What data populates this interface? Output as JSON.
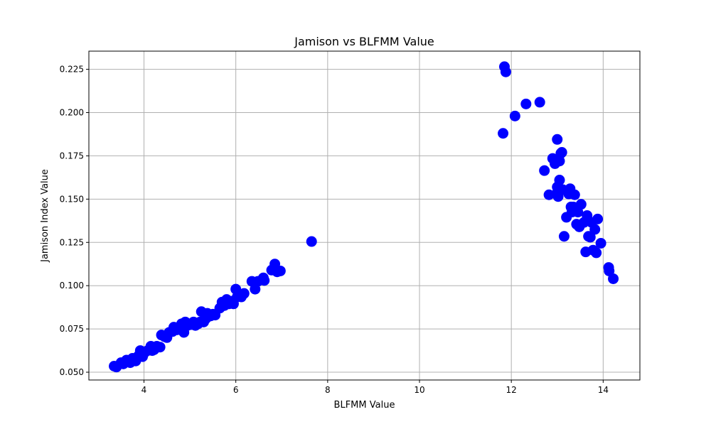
{
  "chart_data": {
    "type": "scatter",
    "title": "Jamison vs BLFMM Value",
    "xlabel": "BLFMM Value",
    "ylabel": "Jamison Index Value",
    "xlim": [
      2.8,
      14.8
    ],
    "ylim": [
      0.0455,
      0.2355
    ],
    "xticks": [
      4,
      6,
      8,
      10,
      12,
      14
    ],
    "xtick_labels": [
      "4",
      "6",
      "8",
      "10",
      "12",
      "14"
    ],
    "yticks": [
      0.05,
      0.075,
      0.1,
      0.125,
      0.15,
      0.175,
      0.2,
      0.225
    ],
    "ytick_labels": [
      "0.050",
      "0.075",
      "0.100",
      "0.125",
      "0.150",
      "0.175",
      "0.200",
      "0.225"
    ],
    "grid": true,
    "marker_color": "#0000ff",
    "series": [
      {
        "points": [
          [
            3.35,
            0.0535
          ],
          [
            3.4,
            0.053
          ],
          [
            3.5,
            0.0555
          ],
          [
            3.55,
            0.0548
          ],
          [
            3.62,
            0.057
          ],
          [
            3.7,
            0.0555
          ],
          [
            3.75,
            0.058
          ],
          [
            3.82,
            0.0565
          ],
          [
            3.88,
            0.0595
          ],
          [
            3.92,
            0.0625
          ],
          [
            3.97,
            0.059
          ],
          [
            4.02,
            0.0615
          ],
          [
            4.08,
            0.0625
          ],
          [
            4.15,
            0.065
          ],
          [
            4.18,
            0.0625
          ],
          [
            4.22,
            0.063
          ],
          [
            4.28,
            0.065
          ],
          [
            4.35,
            0.0645
          ],
          [
            4.38,
            0.0715
          ],
          [
            4.45,
            0.0705
          ],
          [
            4.5,
            0.07
          ],
          [
            4.55,
            0.073
          ],
          [
            4.62,
            0.0735
          ],
          [
            4.65,
            0.076
          ],
          [
            4.72,
            0.0745
          ],
          [
            4.78,
            0.075
          ],
          [
            4.82,
            0.078
          ],
          [
            4.87,
            0.073
          ],
          [
            4.9,
            0.079
          ],
          [
            4.95,
            0.077
          ],
          [
            5.02,
            0.0775
          ],
          [
            5.08,
            0.079
          ],
          [
            5.12,
            0.077
          ],
          [
            5.18,
            0.078
          ],
          [
            5.22,
            0.079
          ],
          [
            5.25,
            0.085
          ],
          [
            5.3,
            0.079
          ],
          [
            5.35,
            0.081
          ],
          [
            5.38,
            0.084
          ],
          [
            5.45,
            0.0825
          ],
          [
            5.5,
            0.0835
          ],
          [
            5.55,
            0.083
          ],
          [
            5.65,
            0.087
          ],
          [
            5.7,
            0.0905
          ],
          [
            5.75,
            0.0885
          ],
          [
            5.8,
            0.092
          ],
          [
            5.85,
            0.0895
          ],
          [
            5.9,
            0.091
          ],
          [
            5.95,
            0.0895
          ],
          [
            6.0,
            0.098
          ],
          [
            6.03,
            0.0935
          ],
          [
            6.08,
            0.095
          ],
          [
            6.12,
            0.0935
          ],
          [
            6.18,
            0.0955
          ],
          [
            6.35,
            0.1025
          ],
          [
            6.42,
            0.098
          ],
          [
            6.48,
            0.1025
          ],
          [
            6.6,
            0.1045
          ],
          [
            6.62,
            0.103
          ],
          [
            6.78,
            0.109
          ],
          [
            6.85,
            0.1125
          ],
          [
            6.9,
            0.108
          ],
          [
            6.97,
            0.1085
          ],
          [
            7.65,
            0.1255
          ],
          [
            11.82,
            0.188
          ],
          [
            11.85,
            0.2265
          ],
          [
            11.88,
            0.2235
          ],
          [
            12.08,
            0.198
          ],
          [
            12.32,
            0.205
          ],
          [
            12.62,
            0.206
          ],
          [
            12.72,
            0.1665
          ],
          [
            12.82,
            0.1525
          ],
          [
            12.9,
            0.1735
          ],
          [
            12.95,
            0.1705
          ],
          [
            12.98,
            0.153
          ],
          [
            13.0,
            0.1845
          ],
          [
            13.0,
            0.157
          ],
          [
            13.02,
            0.1515
          ],
          [
            13.05,
            0.161
          ],
          [
            13.05,
            0.172
          ],
          [
            13.08,
            0.1765
          ],
          [
            13.1,
            0.177
          ],
          [
            13.12,
            0.1555
          ],
          [
            13.15,
            0.1285
          ],
          [
            13.2,
            0.1395
          ],
          [
            13.25,
            0.153
          ],
          [
            13.28,
            0.156
          ],
          [
            13.3,
            0.1455
          ],
          [
            13.32,
            0.1425
          ],
          [
            13.35,
            0.1455
          ],
          [
            13.38,
            0.1525
          ],
          [
            13.42,
            0.1355
          ],
          [
            13.45,
            0.1425
          ],
          [
            13.48,
            0.134
          ],
          [
            13.52,
            0.147
          ],
          [
            13.58,
            0.1365
          ],
          [
            13.62,
            0.1195
          ],
          [
            13.65,
            0.1405
          ],
          [
            13.68,
            0.1285
          ],
          [
            13.72,
            0.128
          ],
          [
            13.75,
            0.1365
          ],
          [
            13.78,
            0.1205
          ],
          [
            13.82,
            0.1325
          ],
          [
            13.85,
            0.119
          ],
          [
            13.88,
            0.1385
          ],
          [
            13.95,
            0.1245
          ],
          [
            14.12,
            0.1105
          ],
          [
            14.13,
            0.1085
          ],
          [
            14.22,
            0.104
          ]
        ]
      }
    ]
  }
}
